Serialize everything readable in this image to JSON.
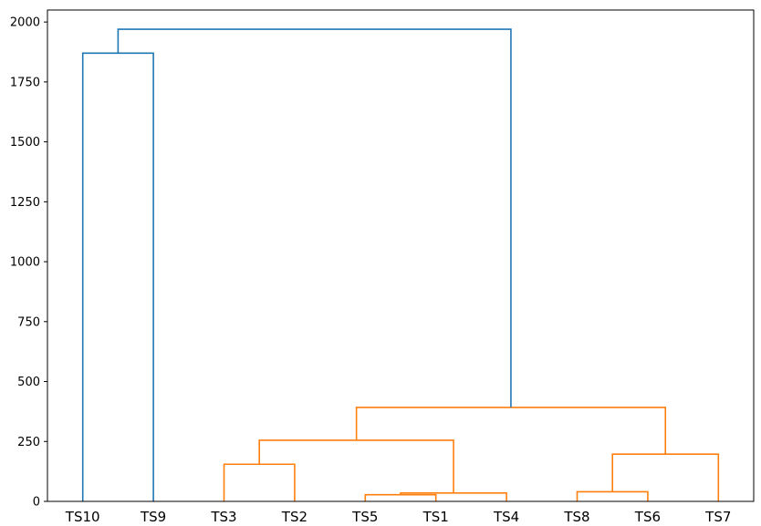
{
  "chart_data": {
    "type": "dendrogram",
    "title": "",
    "xlabel": "",
    "ylabel": "",
    "ylim": [
      0,
      2050
    ],
    "yticks": [
      0,
      250,
      500,
      750,
      1000,
      1250,
      1500,
      1750,
      2000
    ],
    "grid": false,
    "legend": "none",
    "leaves": [
      "TS10",
      "TS9",
      "TS3",
      "TS2",
      "TS5",
      "TS1",
      "TS4",
      "TS8",
      "TS6",
      "TS7"
    ],
    "colors": {
      "above_threshold": "#1f77b4",
      "cluster": "#ff7f0e"
    },
    "links": [
      {
        "xs": [
          0,
          0,
          1,
          1
        ],
        "ys": [
          0,
          1870,
          1870,
          0
        ],
        "color": "#1f77b4"
      },
      {
        "xs": [
          2,
          2,
          3,
          3
        ],
        "ys": [
          0,
          155,
          155,
          0
        ],
        "color": "#ff7f0e"
      },
      {
        "xs": [
          4,
          4,
          5,
          5
        ],
        "ys": [
          0,
          28,
          28,
          0
        ],
        "color": "#ff7f0e"
      },
      {
        "xs": [
          4.5,
          4.5,
          6,
          6
        ],
        "ys": [
          28,
          35,
          35,
          0
        ],
        "color": "#ff7f0e"
      },
      {
        "xs": [
          2.5,
          2.5,
          5.25,
          5.25
        ],
        "ys": [
          155,
          255,
          255,
          35
        ],
        "color": "#ff7f0e"
      },
      {
        "xs": [
          7,
          7,
          8,
          8
        ],
        "ys": [
          0,
          40,
          40,
          0
        ],
        "color": "#ff7f0e"
      },
      {
        "xs": [
          7.5,
          7.5,
          9,
          9
        ],
        "ys": [
          40,
          197,
          197,
          0
        ],
        "color": "#ff7f0e"
      },
      {
        "xs": [
          3.875,
          3.875,
          8.25,
          8.25
        ],
        "ys": [
          255,
          392,
          392,
          197
        ],
        "color": "#ff7f0e"
      },
      {
        "xs": [
          0.5,
          0.5,
          6.0625,
          6.0625
        ],
        "ys": [
          1870,
          1970,
          1970,
          392
        ],
        "color": "#1f77b4"
      }
    ]
  }
}
